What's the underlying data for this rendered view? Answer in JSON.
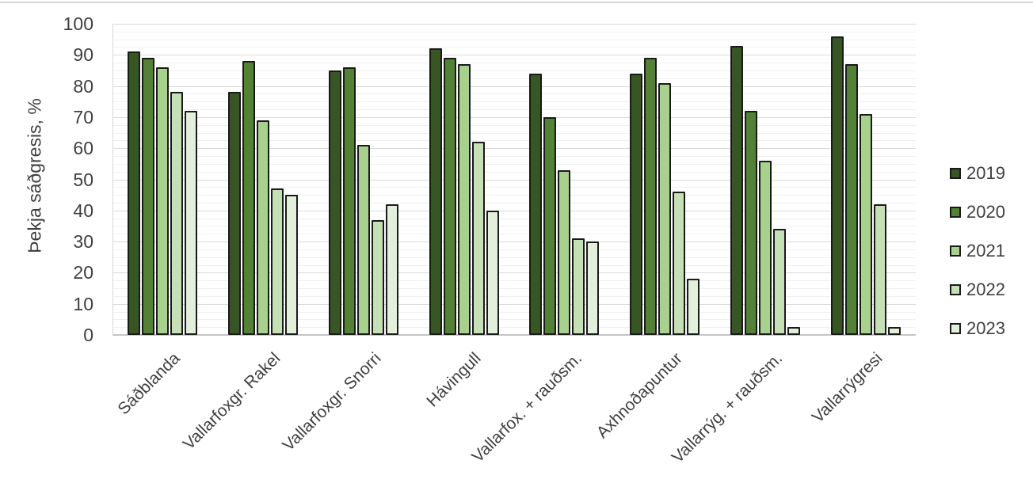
{
  "chart_data": {
    "type": "bar",
    "title": "",
    "ylabel": "Þekja sáðgresis, %",
    "xlabel": "",
    "ylim": [
      0,
      100
    ],
    "ytick_step": 10,
    "minor_gridline_step": 2.5,
    "grid": true,
    "legend_position": "right",
    "categories": [
      "Sáðblanda",
      "Vallarfoxgr. Rakel",
      "Vallarfoxgr. Snorri",
      "Hávingull",
      "Vallarfox. + rauðsm.",
      "Axhnoðapuntur",
      "Vallarrýg. + rauðsm.",
      "Vallarrýgresi"
    ],
    "series": [
      {
        "name": "2019",
        "color": "#375623",
        "values": [
          91,
          78,
          85,
          92,
          84,
          84,
          93,
          96
        ]
      },
      {
        "name": "2020",
        "color": "#538135",
        "values": [
          89,
          88,
          86,
          89,
          70,
          89,
          72,
          87
        ]
      },
      {
        "name": "2021",
        "color": "#A9D18E",
        "values": [
          86,
          69,
          61,
          87,
          53,
          81,
          56,
          71
        ]
      },
      {
        "name": "2022",
        "color": "#C5E0B4",
        "values": [
          78,
          47,
          37,
          62,
          31,
          46,
          34,
          42
        ]
      },
      {
        "name": "2023",
        "color": "#E2EFDA",
        "values": [
          72,
          45,
          42,
          40,
          30,
          18,
          2.5,
          2.5
        ]
      }
    ],
    "colors": {
      "bar_border": "#1a1a1a",
      "major_gridline": "#dadada",
      "minor_gridline": "#f0f0f0",
      "baseline": "#c4c4c4",
      "label_text": "#3f3f3f"
    }
  }
}
